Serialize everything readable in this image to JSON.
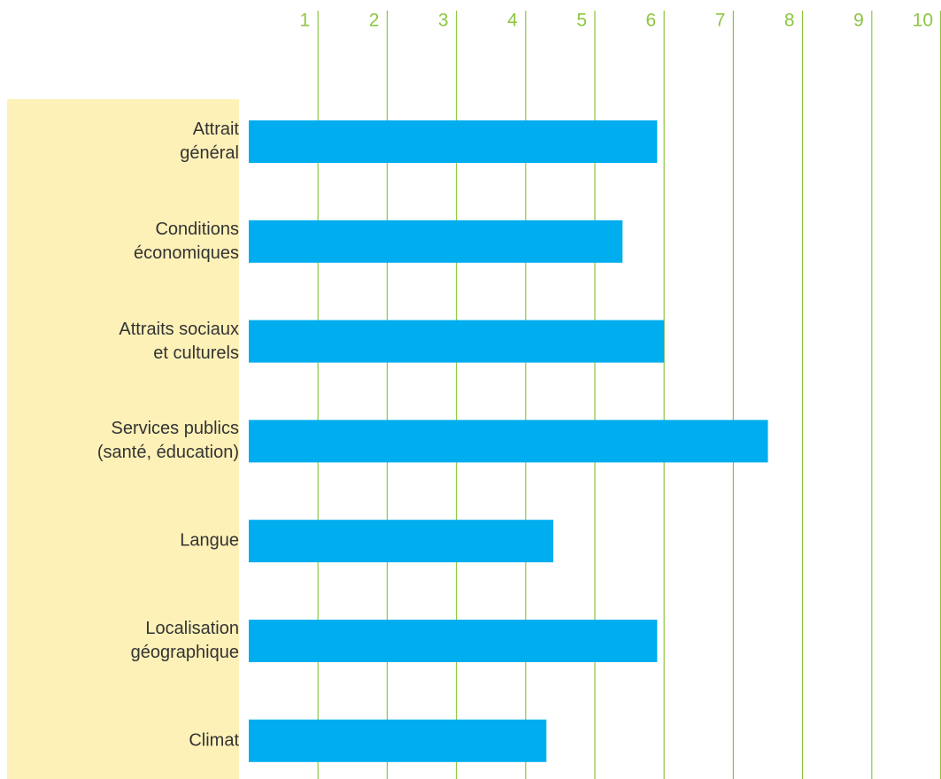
{
  "chart_data": {
    "type": "barh",
    "categories": [
      "Attrait\ngénéral",
      "Conditions\néconomiques",
      "Attraits sociaux\net culturels",
      "Services publics\n(santé, éducation)",
      "Langue",
      "Localisation\ngéographique",
      "Climat"
    ],
    "values": [
      5.9,
      5.4,
      6.0,
      7.5,
      4.4,
      5.9,
      4.3
    ],
    "color": "#00aeef",
    "xlim": [
      0,
      10
    ],
    "xticks": [
      1,
      2,
      3,
      4,
      5,
      6,
      7,
      8,
      9,
      10
    ],
    "grid": true
  }
}
